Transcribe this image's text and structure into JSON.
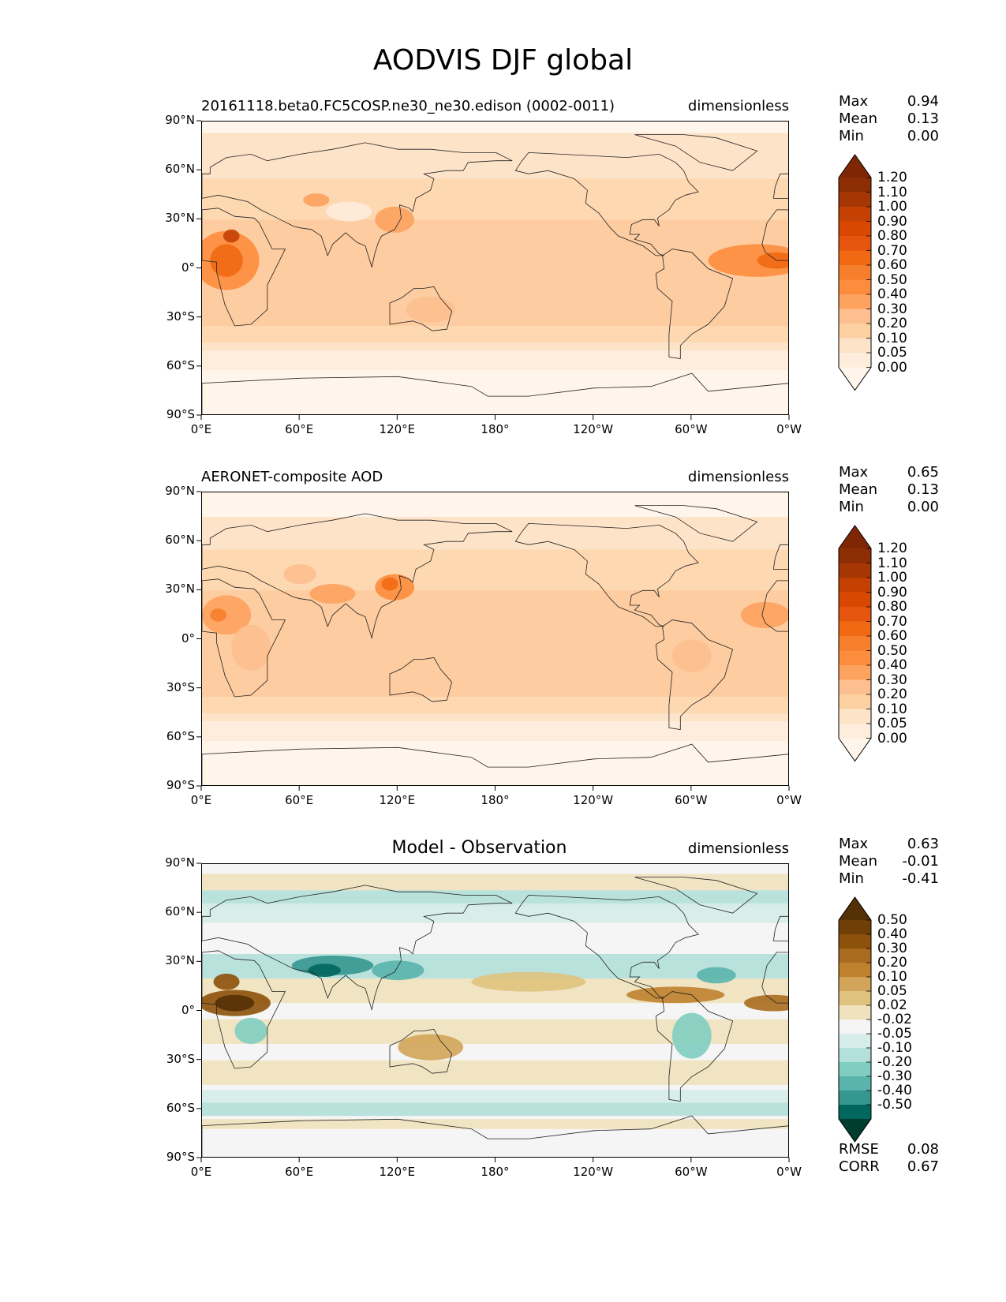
{
  "figure": {
    "title": "AODVIS DJF global"
  },
  "chart_data": [
    {
      "type": "heatmap",
      "panel": "test",
      "title": "20161118.beta0.FC5COSP.ne30_ne30.edison (0002-0011)",
      "units": "dimensionless",
      "x_ticks": [
        "0°E",
        "60°E",
        "120°E",
        "180°",
        "120°W",
        "60°W",
        "0°W"
      ],
      "y_ticks": [
        "90°N",
        "60°N",
        "30°N",
        "0°",
        "30°S",
        "60°S",
        "90°S"
      ],
      "stats": {
        "labels": [
          "Max",
          "Mean",
          "Min"
        ],
        "values": [
          "0.94",
          "0.13",
          "0.00"
        ]
      },
      "colorbar": {
        "levels": [
          "1.20",
          "1.10",
          "1.00",
          "0.90",
          "0.80",
          "0.70",
          "0.60",
          "0.50",
          "0.40",
          "0.30",
          "0.20",
          "0.10",
          "0.05",
          "0.00"
        ],
        "colors": [
          "#7f2704",
          "#8c2d04",
          "#a63603",
          "#c44103",
          "#d94801",
          "#e6550d",
          "#f16913",
          "#f57f2c",
          "#fd8d3c",
          "#fda25f",
          "#fdbf8f",
          "#fdd0a2",
          "#fde3c8",
          "#feecdc",
          "#fff5eb"
        ]
      }
    },
    {
      "type": "heatmap",
      "panel": "reference",
      "title": "AERONET-composite AOD",
      "units": "dimensionless",
      "x_ticks": [
        "0°E",
        "60°E",
        "120°E",
        "180°",
        "120°W",
        "60°W",
        "0°W"
      ],
      "y_ticks": [
        "90°N",
        "60°N",
        "30°N",
        "0°",
        "30°S",
        "60°S",
        "90°S"
      ],
      "stats": {
        "labels": [
          "Max",
          "Mean",
          "Min"
        ],
        "values": [
          "0.65",
          "0.13",
          "0.00"
        ]
      },
      "colorbar": {
        "levels": [
          "1.20",
          "1.10",
          "1.00",
          "0.90",
          "0.80",
          "0.70",
          "0.60",
          "0.50",
          "0.40",
          "0.30",
          "0.20",
          "0.10",
          "0.05",
          "0.00"
        ],
        "colors": [
          "#7f2704",
          "#8c2d04",
          "#a63603",
          "#c44103",
          "#d94801",
          "#e6550d",
          "#f16913",
          "#f57f2c",
          "#fd8d3c",
          "#fda25f",
          "#fdbf8f",
          "#fdd0a2",
          "#fde3c8",
          "#feecdc",
          "#fff5eb"
        ]
      }
    },
    {
      "type": "heatmap",
      "panel": "difference",
      "title": "Model - Observation",
      "units": "dimensionless",
      "x_ticks": [
        "0°E",
        "60°E",
        "120°E",
        "180°",
        "120°W",
        "60°W",
        "0°W"
      ],
      "y_ticks": [
        "90°N",
        "60°N",
        "30°N",
        "0°",
        "30°S",
        "60°S",
        "90°S"
      ],
      "stats": {
        "labels": [
          "Max",
          "Mean",
          "Min"
        ],
        "values": [
          "0.63",
          "-0.01",
          "-0.41"
        ]
      },
      "extra_stats": {
        "labels": [
          "RMSE",
          "CORR"
        ],
        "values": [
          "0.08",
          "0.67"
        ]
      },
      "colorbar": {
        "levels": [
          "0.50",
          "0.40",
          "0.30",
          "0.20",
          "0.10",
          "0.05",
          "0.02",
          "-0.02",
          "-0.05",
          "-0.10",
          "-0.20",
          "-0.30",
          "-0.40",
          "-0.50"
        ],
        "colors": [
          "#543005",
          "#6f3f07",
          "#8c510a",
          "#a96b1f",
          "#bf812d",
          "#d2a55a",
          "#dfc27d",
          "#f0e2bc",
          "#f5f5f5",
          "#d6ede9",
          "#b3e0da",
          "#80cdc1",
          "#5ab4ac",
          "#35978f",
          "#01665e",
          "#003c30"
        ]
      }
    }
  ]
}
